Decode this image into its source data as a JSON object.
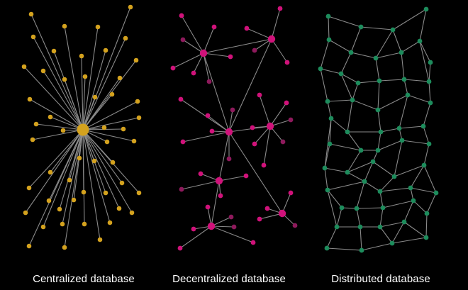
{
  "captions": {
    "centralized": "Centralized database",
    "decentralized": "Decentralized database",
    "distributed": "Distributed database"
  },
  "colors": {
    "background": "#000000",
    "edge": "#8a8a8a",
    "centralized_node": "#d4a21e",
    "decentralized_node": "#d0127a",
    "decentralized_node_dim": "#8e1a5c",
    "distributed_node": "#1d8c5c",
    "caption_text": "#ffffff"
  }
}
